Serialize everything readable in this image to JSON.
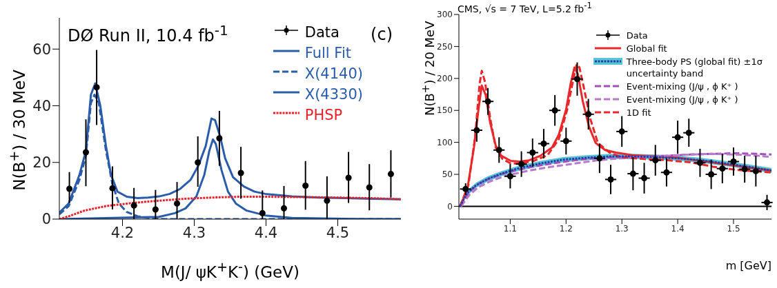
{
  "chart_data": [
    {
      "type": "line",
      "title": "DØ Run II, 10.4 fb$^{-1}$",
      "xlabel": "M(J/ ψK$^{+}$K$^{-}$) (GeV)",
      "ylabel": "N(B$^{+}$) / 30 MeV",
      "annotations": [
        "(c)"
      ],
      "xlim": [
        4.112,
        4.588
      ],
      "xticks": [
        4.2,
        4.3,
        4.4,
        4.5
      ],
      "ylim": [
        0,
        71
      ],
      "yticks": [
        0,
        20,
        40,
        60
      ],
      "legend": "top right",
      "grid": false,
      "series": [
        {
          "name": "Data",
          "type": "scatter",
          "marker": "circle",
          "color": "#000000",
          "x": [
            4.126,
            4.149,
            4.164,
            4.186,
            4.216,
            4.246,
            4.276,
            4.305,
            4.335,
            4.365,
            4.395,
            4.425,
            4.455,
            4.485,
            4.515,
            4.544,
            4.574
          ],
          "values": [
            10.7,
            23.6,
            46.5,
            10.9,
            4.8,
            3.4,
            5.5,
            20.0,
            28.5,
            16.3,
            2.1,
            3.8,
            11.8,
            6.5,
            14.6,
            11.2,
            15.9
          ],
          "errors": [
            [
              5.7,
              16.6
            ],
            [
              11.6,
              35.2
            ],
            [
              33.2,
              59.7
            ],
            [
              3.4,
              18.6
            ],
            [
              0,
              11.0
            ],
            [
              0,
              10.3
            ],
            [
              0,
              13.1
            ],
            [
              11.4,
              29.2
            ],
            [
              18.8,
              38.2
            ],
            [
              7.2,
              25.5
            ],
            [
              0,
              10.1
            ],
            [
              0,
              11.7
            ],
            [
              3.3,
              20.5
            ],
            [
              0,
              15.1
            ],
            [
              5.7,
              23.7
            ],
            [
              3.1,
              19.4
            ],
            [
              7.6,
              24.3
            ]
          ]
        },
        {
          "name": "Full Fit",
          "type": "line",
          "line_style": "solid",
          "color": "#2a5caa",
          "x": [
            4.112,
            4.125,
            4.14,
            4.149,
            4.156,
            4.162,
            4.169,
            4.177,
            4.184,
            4.193,
            4.206,
            4.221,
            4.236,
            4.251,
            4.266,
            4.28,
            4.295,
            4.306,
            4.316,
            4.324,
            4.329,
            4.336,
            4.343,
            4.354,
            4.369,
            4.384,
            4.399,
            4.436,
            4.473,
            4.51,
            4.547,
            4.588
          ],
          "values": [
            2.3,
            5.5,
            15.6,
            24.1,
            43.9,
            47.9,
            40.1,
            25.8,
            15.6,
            9.7,
            7.9,
            7.4,
            7.6,
            8.0,
            8.9,
            10.6,
            13.9,
            19.0,
            25.8,
            35.5,
            34.9,
            29.2,
            21.5,
            14.8,
            11.5,
            9.7,
            8.9,
            8.0,
            7.6,
            7.4,
            7.2,
            7.0
          ]
        },
        {
          "name": "X(4140)",
          "type": "line",
          "line_style": "dashed",
          "color": "#2a5caa",
          "x": [
            4.112,
            4.125,
            4.14,
            4.149,
            4.156,
            4.161,
            4.167,
            4.177,
            4.186,
            4.195,
            4.206,
            4.221,
            4.236,
            4.258,
            4.588
          ],
          "values": [
            1.7,
            4.6,
            13.9,
            22.4,
            41.0,
            43.9,
            41.0,
            24.1,
            12.3,
            5.5,
            2.5,
            1.0,
            0.4,
            0,
            0
          ]
        },
        {
          "name": "X(4330)",
          "type": "line",
          "line_style": "solid",
          "color": "#2a5caa",
          "x": [
            4.112,
            4.251,
            4.273,
            4.288,
            4.303,
            4.314,
            4.321,
            4.326,
            4.33,
            4.338,
            4.347,
            4.358,
            4.373,
            4.399,
            4.436,
            4.51,
            4.588
          ],
          "values": [
            0,
            0.8,
            2.1,
            3.8,
            8.0,
            15.6,
            24.1,
            28.1,
            26.6,
            17.3,
            9.7,
            5.5,
            3.0,
            1.3,
            0.4,
            0.1,
            0
          ]
        },
        {
          "name": "PHSP",
          "type": "line",
          "line_style": "dotted",
          "color": "#e8202a",
          "x": [
            4.112,
            4.125,
            4.147,
            4.177,
            4.214,
            4.251,
            4.288,
            4.325,
            4.362,
            4.399,
            4.473,
            4.547,
            4.588
          ],
          "values": [
            0,
            1.0,
            3.0,
            4.6,
            5.7,
            6.5,
            7.2,
            7.6,
            7.9,
            7.9,
            7.7,
            7.4,
            7.0
          ]
        }
      ]
    },
    {
      "type": "line",
      "title": "CMS,   √s = 7 TeV, L=5.2 fb$^{-1}$",
      "xlabel": "m [GeV]",
      "ylabel": "N(B$^{+}$) / 20 MeV",
      "xlim": [
        1.008,
        1.568
      ],
      "xticks": [
        1.1,
        1.2,
        1.3,
        1.4,
        1.5
      ],
      "ylim": [
        -20,
        300
      ],
      "yticks": [
        0,
        50,
        100,
        150,
        200,
        250,
        300
      ],
      "legend": "top right",
      "grid": false,
      "ref_lines": [
        {
          "axis": "y",
          "value": 0,
          "color": "#000000"
        }
      ],
      "series": [
        {
          "name": "Data",
          "type": "scatter",
          "marker": "circle",
          "color": "#000000",
          "x": [
            1.02,
            1.04,
            1.06,
            1.08,
            1.1,
            1.12,
            1.14,
            1.16,
            1.18,
            1.2,
            1.22,
            1.24,
            1.26,
            1.28,
            1.3,
            1.32,
            1.34,
            1.36,
            1.38,
            1.4,
            1.42,
            1.44,
            1.46,
            1.48,
            1.5,
            1.52,
            1.54,
            1.56
          ],
          "values": [
            27,
            119,
            164,
            88,
            47,
            66,
            84,
            98,
            150,
            102,
            199,
            144,
            75,
            42,
            117,
            51,
            44,
            72,
            53,
            108,
            115,
            68,
            50,
            59,
            70,
            58,
            55,
            6
          ],
          "errors": [
            9,
            18,
            21,
            20,
            19,
            20,
            22,
            23,
            24,
            21,
            26,
            24,
            23,
            23,
            24,
            26,
            24,
            24,
            22,
            26,
            22,
            22,
            23,
            23,
            22,
            21,
            24,
            12
          ],
          "xerrors": [
            0.01,
            0.01,
            0.01,
            0.01,
            0.01,
            0.01,
            0.01,
            0.01,
            0.01,
            0.01,
            0.01,
            0.01,
            0.01,
            0.01,
            0.01,
            0.01,
            0.01,
            0.01,
            0.01,
            0.01,
            0.01,
            0.01,
            0.01,
            0.01,
            0.01,
            0.01,
            0.01,
            0.01
          ]
        },
        {
          "name": "Global fit",
          "type": "line",
          "line_style": "solid",
          "color": "#e8282a",
          "x": [
            1.01,
            1.023,
            1.035,
            1.043,
            1.049,
            1.056,
            1.064,
            1.074,
            1.084,
            1.101,
            1.117,
            1.134,
            1.154,
            1.175,
            1.187,
            1.2,
            1.208,
            1.215,
            1.221,
            1.23,
            1.241,
            1.253,
            1.27,
            1.29,
            1.319,
            1.36,
            1.401,
            1.442,
            1.484,
            1.525,
            1.568
          ],
          "values": [
            0,
            26,
            92,
            151,
            189,
            174,
            131,
            95,
            79,
            71,
            70,
            72,
            79,
            92,
            112,
            151,
            191,
            217,
            207,
            164,
            125,
            99,
            88,
            84,
            80,
            78,
            76,
            71,
            66,
            61,
            56
          ]
        },
        {
          "name": "Three-body PS (global fit) ±1σ  uncertainty band",
          "type": "line",
          "line_style": "dotted",
          "color": "#2040b0",
          "x": [
            1.01,
            1.023,
            1.039,
            1.06,
            1.084,
            1.113,
            1.154,
            1.195,
            1.237,
            1.278,
            1.319,
            1.36,
            1.401,
            1.442,
            1.484,
            1.525,
            1.568
          ],
          "values": [
            0,
            21,
            33,
            43,
            51,
            59,
            67,
            73,
            76,
            78,
            78,
            77,
            75,
            72,
            67,
            62,
            56
          ],
          "lower": [
            0,
            17,
            29,
            39,
            47,
            55,
            63,
            69,
            72,
            74,
            74,
            73,
            71,
            68,
            63,
            58,
            52
          ],
          "upper": [
            0,
            25,
            37,
            47,
            55,
            63,
            71,
            77,
            80,
            82,
            82,
            81,
            79,
            76,
            71,
            66,
            60
          ]
        },
        {
          "name": "Event-mixing (J/ψ , ϕ K⁺ )",
          "type": "line",
          "line_style": "dashed",
          "color": "#a050b8",
          "x": [
            1.012,
            1.027,
            1.043,
            1.064,
            1.093,
            1.134,
            1.175,
            1.216,
            1.257,
            1.298,
            1.34,
            1.381,
            1.422,
            1.463,
            1.504,
            1.545,
            1.568
          ],
          "values": [
            0,
            23,
            35,
            44,
            53,
            61,
            67,
            72,
            76,
            77,
            78,
            79,
            81,
            82,
            83,
            82,
            81
          ]
        },
        {
          "name": "Event-mixing (J/ψ , ϕ K⁺ )",
          "type": "line",
          "line_style": "dashed",
          "color": "#b878cc",
          "x": [
            1.012,
            1.027,
            1.043,
            1.064,
            1.093,
            1.134,
            1.175,
            1.216,
            1.257,
            1.298,
            1.34,
            1.381,
            1.422,
            1.463,
            1.504,
            1.545,
            1.568
          ],
          "values": [
            0,
            18,
            30,
            39,
            48,
            56,
            62,
            67,
            72,
            75,
            77,
            79,
            81,
            82,
            81,
            79,
            77
          ]
        },
        {
          "name": "1D fit",
          "type": "line",
          "line_style": "dashed",
          "color": "#e8282a",
          "x": [
            1.01,
            1.025,
            1.037,
            1.045,
            1.049,
            1.055,
            1.064,
            1.074,
            1.086,
            1.101,
            1.117,
            1.142,
            1.167,
            1.187,
            1.202,
            1.212,
            1.219,
            1.224,
            1.233,
            1.243,
            1.257,
            1.278,
            1.298,
            1.34,
            1.381,
            1.422,
            1.463,
            1.504,
            1.568
          ],
          "values": [
            0,
            33,
            108,
            191,
            212,
            194,
            138,
            92,
            74,
            67,
            67,
            71,
            80,
            105,
            151,
            194,
            222,
            217,
            181,
            138,
            99,
            84,
            77,
            74,
            72,
            69,
            62,
            57,
            53
          ]
        }
      ]
    }
  ]
}
